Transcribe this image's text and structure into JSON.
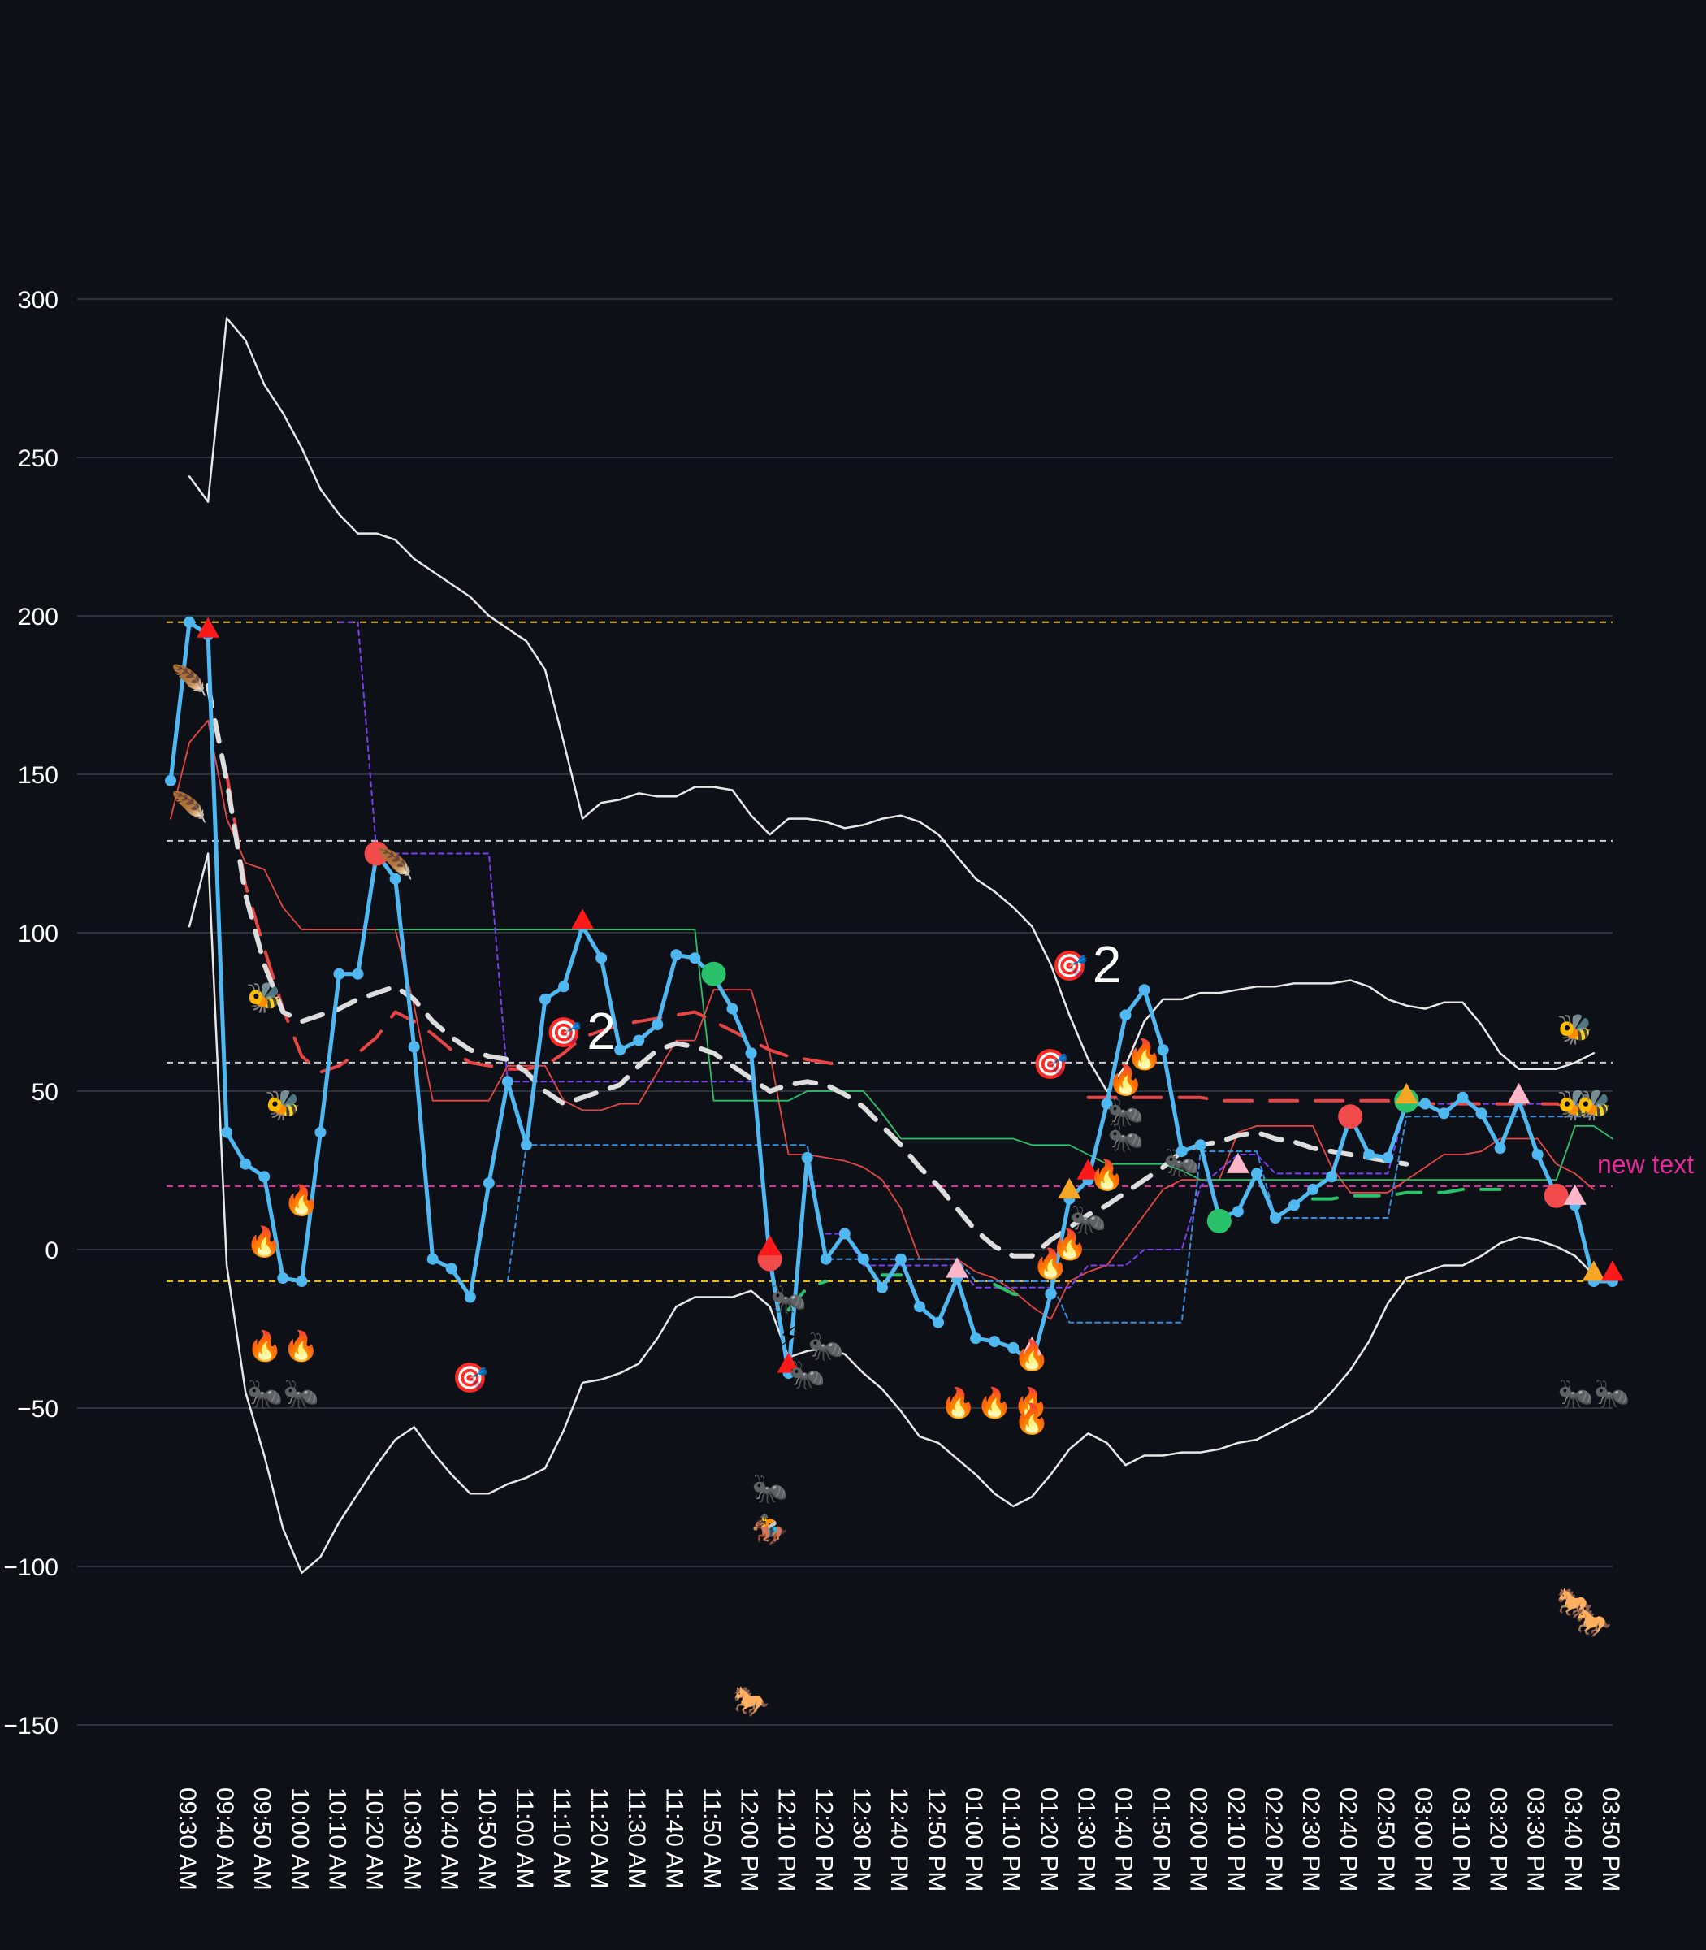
{
  "chart_data": {
    "type": "line",
    "title": "",
    "xlabel": "",
    "ylabel": "",
    "ylim": [
      -160,
      320
    ],
    "yticks": [
      300,
      250,
      200,
      150,
      100,
      50,
      0,
      -50,
      -100,
      -150
    ],
    "times": [
      "09:30 AM",
      "09:35 AM",
      "09:40 AM",
      "09:45 AM",
      "09:50 AM",
      "09:55 AM",
      "10:00 AM",
      "10:05 AM",
      "10:10 AM",
      "10:15 AM",
      "10:20 AM",
      "10:25 AM",
      "10:30 AM",
      "10:35 AM",
      "10:40 AM",
      "10:45 AM",
      "10:50 AM",
      "10:55 AM",
      "11:00 AM",
      "11:05 AM",
      "11:10 AM",
      "11:15 AM",
      "11:20 AM",
      "11:25 AM",
      "11:30 AM",
      "11:35 AM",
      "11:40 AM",
      "11:45 AM",
      "11:50 AM",
      "11:55 AM",
      "12:00 PM",
      "12:05 PM",
      "12:10 PM",
      "12:15 PM",
      "12:20 PM",
      "12:25 PM",
      "12:30 PM",
      "12:35 PM",
      "12:40 PM",
      "12:45 PM",
      "12:50 PM",
      "12:55 PM",
      "01:00 PM",
      "01:05 PM",
      "01:10 PM",
      "01:15 PM",
      "01:20 PM",
      "01:25 PM",
      "01:30 PM",
      "01:35 PM",
      "01:40 PM",
      "01:45 PM",
      "01:50 PM",
      "01:55 PM",
      "02:00 PM",
      "02:05 PM",
      "02:10 PM",
      "02:15 PM",
      "02:20 PM",
      "02:25 PM",
      "02:30 PM",
      "02:35 PM",
      "02:40 PM",
      "02:45 PM",
      "02:50 PM",
      "02:55 PM",
      "03:00 PM",
      "03:05 PM",
      "03:10 PM",
      "03:15 PM",
      "03:20 PM",
      "03:25 PM",
      "03:30 PM",
      "03:35 PM",
      "03:40 PM",
      "03:45 PM",
      "03:50 PM",
      "03:55 PM"
    ],
    "xtick_labels": [
      "09:30 AM",
      "09:40 AM",
      "09:50 AM",
      "10:00 AM",
      "10:10 AM",
      "10:20 AM",
      "10:30 AM",
      "10:40 AM",
      "10:50 AM",
      "11:00 AM",
      "11:10 AM",
      "11:20 AM",
      "11:30 AM",
      "11:40 AM",
      "11:50 AM",
      "12:00 PM",
      "12:10 PM",
      "12:20 PM",
      "12:30 PM",
      "12:40 PM",
      "12:50 PM",
      "01:00 PM",
      "01:10 PM",
      "01:20 PM",
      "01:30 PM",
      "01:40 PM",
      "01:50 PM",
      "02:00 PM",
      "02:10 PM",
      "02:20 PM",
      "02:30 PM",
      "02:40 PM",
      "02:50 PM",
      "03:00 PM",
      "03:10 PM",
      "03:20 PM",
      "03:30 PM",
      "03:40 PM",
      "03:50 PM"
    ],
    "series": [
      {
        "style": "main",
        "color": "#4fb8f0",
        "values": [
          148,
          198,
          194,
          37,
          27,
          23,
          -9,
          -10,
          37,
          87,
          87,
          125,
          117,
          64,
          -3,
          -6,
          -15,
          21,
          53,
          33,
          79,
          83,
          102,
          92,
          63,
          66,
          71,
          93,
          92,
          86,
          76,
          62,
          -3,
          -39,
          29,
          -3,
          5,
          -3,
          -12,
          -3,
          -18,
          -23,
          -9,
          -28,
          -29,
          -31,
          -36,
          -14,
          16,
          22,
          46,
          74,
          82,
          63,
          31,
          33,
          10,
          12,
          24,
          10,
          14,
          19,
          23,
          42,
          30,
          29,
          46,
          46,
          43,
          48,
          43,
          32,
          47,
          30,
          17,
          14,
          -10,
          -10
        ]
      },
      {
        "style": "bb_upper",
        "color": "#e8e8e8",
        "values": [
          null,
          244,
          236,
          294,
          287,
          273,
          264,
          253,
          240,
          232,
          226,
          226,
          224,
          218,
          214,
          210,
          206,
          200,
          196,
          192,
          183,
          160,
          136,
          141,
          142,
          144,
          143,
          143,
          146,
          146,
          145,
          137,
          131,
          136,
          136,
          135,
          133,
          134,
          136,
          137,
          135,
          131,
          124,
          117,
          113,
          108,
          102,
          90,
          74,
          60,
          50,
          58,
          72,
          79,
          79,
          81,
          81,
          82,
          83,
          83,
          84,
          84,
          84,
          85,
          83,
          79,
          77,
          76,
          78,
          78,
          71,
          62,
          57,
          57,
          57,
          59,
          62,
          null
        ]
      },
      {
        "style": "bb_lower",
        "color": "#e8e8e8",
        "values": [
          null,
          102,
          125,
          -5,
          -45,
          -65,
          -88,
          -102,
          -97,
          -86,
          -77,
          -68,
          -60,
          -56,
          -64,
          -71,
          -77,
          -77,
          -74,
          -72,
          -69,
          -57,
          -42,
          -41,
          -39,
          -36,
          -28,
          -18,
          -15,
          -15,
          -15,
          -13,
          -18,
          -34,
          -32,
          -31,
          -33,
          -39,
          -44,
          -51,
          -59,
          -61,
          -66,
          -71,
          -77,
          -81,
          -78,
          -71,
          -63,
          -58,
          -61,
          -68,
          -65,
          -65,
          -64,
          -64,
          -63,
          -61,
          -60,
          -57,
          -54,
          -51,
          -45,
          -38,
          -29,
          -17,
          -9,
          -7,
          -5,
          -5,
          -2,
          2,
          4,
          3,
          1,
          -2,
          -8,
          null
        ]
      },
      {
        "style": "sma_dash_white",
        "color": "#dddddd",
        "values": [
          null,
          null,
          178,
          148,
          112,
          90,
          75,
          72,
          74,
          76,
          79,
          81,
          83,
          79,
          72,
          67,
          63,
          61,
          60,
          56,
          50,
          46,
          48,
          50,
          52,
          58,
          63,
          65,
          64,
          62,
          58,
          54,
          50,
          52,
          53,
          52,
          49,
          45,
          39,
          33,
          26,
          20,
          13,
          6,
          1,
          -2,
          -2,
          3,
          7,
          11,
          14,
          18,
          22,
          26,
          31,
          33,
          34,
          36,
          37,
          35,
          34,
          32,
          31,
          30,
          29,
          28,
          27,
          null,
          null,
          null,
          null,
          null,
          null,
          null,
          null,
          null,
          null,
          null
        ]
      },
      {
        "style": "ema_dash_red",
        "color": "#e84545",
        "values": [
          null,
          null,
          null,
          150,
          115,
          95,
          76,
          61,
          56,
          58,
          62,
          67,
          75,
          72,
          68,
          63,
          59,
          58,
          57,
          57,
          58,
          62,
          67,
          69,
          71,
          72,
          73,
          74,
          75,
          72,
          69,
          66,
          63,
          61,
          60,
          59,
          58,
          null,
          null,
          null,
          null,
          null,
          null,
          null,
          null,
          null,
          null,
          null,
          null,
          48,
          48,
          48,
          48,
          48,
          48,
          48,
          47,
          47,
          47,
          47,
          47,
          47,
          47,
          47,
          47,
          47,
          46,
          46,
          46,
          46,
          46,
          46,
          46,
          46,
          46,
          45,
          45,
          null
        ]
      },
      {
        "style": "thin_red",
        "color": "#e84545",
        "values": [
          136,
          160,
          167,
          136,
          122,
          120,
          108,
          101,
          101,
          101,
          101,
          101,
          101,
          77,
          47,
          47,
          47,
          47,
          58,
          58,
          58,
          47,
          44,
          44,
          46,
          46,
          56,
          66,
          66,
          82,
          82,
          82,
          62,
          30,
          30,
          29,
          28,
          26,
          22,
          13,
          -3,
          -3,
          -3,
          -7,
          -9,
          -13,
          -18,
          -22,
          -10,
          -7,
          -5,
          3,
          11,
          19,
          22,
          22,
          22,
          37,
          39,
          39,
          39,
          39,
          26,
          18,
          18,
          18,
          22,
          26,
          30,
          30,
          31,
          35,
          35,
          35,
          27,
          24,
          19,
          null
        ]
      },
      {
        "style": "thin_green",
        "color": "#29c26a",
        "values": [
          null,
          null,
          null,
          null,
          null,
          null,
          null,
          null,
          null,
          null,
          null,
          101,
          101,
          101,
          101,
          101,
          101,
          101,
          101,
          101,
          101,
          101,
          101,
          101,
          101,
          101,
          101,
          101,
          101,
          47,
          47,
          47,
          47,
          47,
          50,
          50,
          50,
          50,
          43,
          35,
          35,
          35,
          35,
          35,
          35,
          35,
          33,
          33,
          33,
          30,
          27,
          27,
          27,
          27,
          25,
          22,
          22,
          22,
          22,
          22,
          22,
          22,
          22,
          22,
          22,
          22,
          22,
          22,
          22,
          22,
          22,
          22,
          22,
          22,
          22,
          39,
          39,
          35
        ]
      },
      {
        "style": "dash_purple",
        "color": "#7b3ff2",
        "values": [
          null,
          null,
          null,
          null,
          null,
          null,
          null,
          null,
          null,
          198,
          198,
          125,
          125,
          125,
          125,
          125,
          125,
          125,
          53,
          53,
          53,
          53,
          53,
          53,
          53,
          53,
          53,
          53,
          53,
          53,
          53,
          53,
          null,
          null,
          null,
          5,
          5,
          -5,
          -5,
          -5,
          -5,
          -5,
          -5,
          -12,
          -12,
          -12,
          -12,
          -12,
          -12,
          -5,
          -5,
          -5,
          0,
          0,
          0,
          20,
          25,
          30,
          30,
          24,
          24,
          24,
          24,
          24,
          24,
          24,
          46,
          46,
          46,
          46,
          46,
          46,
          46,
          46,
          46,
          46,
          46,
          null
        ]
      },
      {
        "style": "dash_blue",
        "color": "#3a8ee0",
        "values": [
          null,
          null,
          null,
          null,
          null,
          null,
          null,
          null,
          null,
          null,
          null,
          null,
          null,
          null,
          null,
          null,
          null,
          null,
          -10,
          33,
          33,
          33,
          33,
          33,
          33,
          33,
          33,
          33,
          33,
          33,
          33,
          33,
          33,
          33,
          33,
          -3,
          -3,
          -3,
          -3,
          -3,
          -3,
          -3,
          -3,
          -10,
          -10,
          -10,
          -10,
          -10,
          -23,
          -23,
          -23,
          -23,
          -23,
          -23,
          -23,
          31,
          31,
          31,
          31,
          10,
          10,
          10,
          10,
          10,
          10,
          10,
          42,
          42,
          42,
          42,
          42,
          42,
          42,
          42,
          42,
          42,
          42,
          null
        ]
      },
      {
        "style": "dash_green_long",
        "color": "#29c26a",
        "values": [
          null,
          null,
          null,
          null,
          null,
          null,
          null,
          null,
          null,
          null,
          null,
          null,
          null,
          null,
          null,
          null,
          null,
          null,
          null,
          null,
          null,
          null,
          null,
          null,
          null,
          null,
          null,
          null,
          null,
          null,
          null,
          null,
          null,
          -19,
          -12,
          -10,
          null,
          null,
          -8,
          -8,
          null,
          null,
          -10,
          null,
          -11,
          -14,
          -15,
          null,
          null,
          null,
          null,
          null,
          null,
          null,
          null,
          null,
          null,
          null,
          null,
          null,
          null,
          16,
          16,
          17,
          17,
          17,
          18,
          18,
          18,
          19,
          19,
          19,
          null,
          null,
          null,
          null,
          null,
          8
        ]
      }
    ],
    "hlines": [
      {
        "y": 198,
        "color": "#e8c20a"
      },
      {
        "y": 129,
        "color": "#cfcfcf"
      },
      {
        "y": 59,
        "color": "#cfcfcf"
      },
      {
        "y": 20,
        "color": "#e22a9a",
        "label": "new text"
      },
      {
        "y": -10,
        "color": "#e8c20a"
      }
    ],
    "dot_markers": [
      {
        "i": 11,
        "y": 125,
        "color": "#f04a4a"
      },
      {
        "i": 32,
        "y": -3,
        "color": "#f04a4a"
      },
      {
        "i": 29,
        "y": 87,
        "color": "#29c26a"
      },
      {
        "i": 56,
        "y": 9,
        "color": "#29c26a"
      },
      {
        "i": 66,
        "y": 47,
        "color": "#29c26a"
      },
      {
        "i": 63,
        "y": 42,
        "color": "#f04a4a"
      },
      {
        "i": 74,
        "y": 17,
        "color": "#f04a4a"
      }
    ],
    "triangle_markers": [
      {
        "i": 22,
        "y": 104,
        "color": "#ff1a1a"
      },
      {
        "i": 2,
        "y": 196,
        "color": "#ff1a1a"
      },
      {
        "i": 33,
        "y": -36,
        "color": "#ff1a1a"
      },
      {
        "i": 32,
        "y": 1,
        "color": "#ff1a1a"
      },
      {
        "i": 48,
        "y": 19,
        "color": "#f5a623"
      },
      {
        "i": 49,
        "y": 25,
        "color": "#ff1a1a"
      },
      {
        "i": 42,
        "y": -6,
        "color": "#ffb6c8"
      },
      {
        "i": 46,
        "y": -31,
        "color": "#ffb6c8"
      },
      {
        "i": 57,
        "y": 27,
        "color": "#ffb6c8"
      },
      {
        "i": 66,
        "y": 49,
        "color": "#f5a623"
      },
      {
        "i": 72,
        "y": 49,
        "color": "#ffb6c8"
      },
      {
        "i": 75,
        "y": 17,
        "color": "#ffb6c8"
      },
      {
        "i": 76,
        "y": -7,
        "color": "#f5a623"
      },
      {
        "i": 77,
        "y": -7,
        "color": "#ff1a1a"
      }
    ],
    "emoji_markers": [
      {
        "i": 1,
        "y": 180,
        "g": "🪶"
      },
      {
        "i": 1,
        "y": 140,
        "g": "🪶"
      },
      {
        "i": 12,
        "y": 122,
        "g": "🪶"
      },
      {
        "i": 5,
        "y": 80,
        "g": "🐝"
      },
      {
        "i": 6,
        "y": 46,
        "g": "🐝"
      },
      {
        "i": 75,
        "y": 70,
        "g": "🐝"
      },
      {
        "i": 75,
        "y": 46,
        "g": "🐝"
      },
      {
        "i": 76,
        "y": 46,
        "g": "🐝"
      },
      {
        "i": 5,
        "y": 3,
        "g": "🔥"
      },
      {
        "i": 7,
        "y": 16,
        "g": "🔥"
      },
      {
        "i": 6,
        "y": -30,
        "g": "🔥🔥"
      },
      {
        "i": 6,
        "y": -45,
        "g": "🐜🐜"
      },
      {
        "i": 16,
        "y": -40,
        "g": "🎯"
      },
      {
        "i": 21,
        "y": 69,
        "g": "🎯"
      },
      {
        "i": 47,
        "y": 59,
        "g": "🎯"
      },
      {
        "i": 48,
        "y": 90,
        "g": "🎯"
      },
      {
        "i": 33,
        "y": -15,
        "g": "🐜"
      },
      {
        "i": 33,
        "y": -27,
        "g": "⚡"
      },
      {
        "i": 35,
        "y": -30,
        "g": "🐜"
      },
      {
        "i": 34,
        "y": -39,
        "g": "🐜"
      },
      {
        "i": 32,
        "y": -75,
        "g": "🐜"
      },
      {
        "i": 32,
        "y": -88,
        "g": "🏇"
      },
      {
        "i": 31,
        "y": -142,
        "g": "🐎"
      },
      {
        "i": 44,
        "y": -48,
        "g": "🔥🔥🔥"
      },
      {
        "i": 46,
        "y": -53,
        "g": "🔥"
      },
      {
        "i": 46,
        "y": -33,
        "g": "🔥"
      },
      {
        "i": 47,
        "y": -4,
        "g": "🔥"
      },
      {
        "i": 48,
        "y": 2,
        "g": "🔥"
      },
      {
        "i": 50,
        "y": 24,
        "g": "🔥"
      },
      {
        "i": 49,
        "y": 10,
        "g": "🐜"
      },
      {
        "i": 51,
        "y": 36,
        "g": "🐜"
      },
      {
        "i": 51,
        "y": 44,
        "g": "🐜"
      },
      {
        "i": 51,
        "y": 54,
        "g": "🔥"
      },
      {
        "i": 52,
        "y": 62,
        "g": "🔥"
      },
      {
        "i": 54,
        "y": 28,
        "g": "🐜"
      },
      {
        "i": 76,
        "y": -45,
        "g": "🐜🐜"
      },
      {
        "i": 75,
        "y": -111,
        "g": "🐎"
      },
      {
        "i": 76,
        "y": -117,
        "g": "🐎"
      }
    ],
    "text_annotations": [
      {
        "i": 23,
        "y": 69,
        "text": "2"
      },
      {
        "i": 50,
        "y": 90,
        "text": "2"
      }
    ]
  }
}
